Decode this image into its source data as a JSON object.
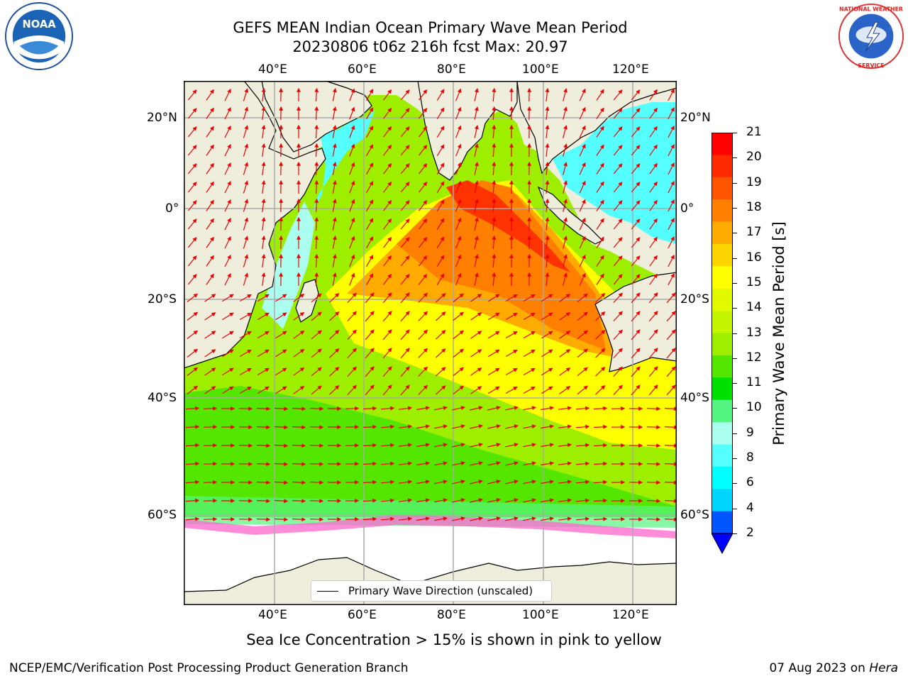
{
  "header": {
    "title_line1": "GEFS MEAN Indian Ocean Primary Wave Mean Period",
    "title_line2": "20230806 t06z 216h fcst   Max: 20.97"
  },
  "logos": {
    "left": "noaa-logo",
    "left_text": "NOAA",
    "right": "national-weather-service-logo",
    "right_text": "NATIONAL WEATHER SERVICE"
  },
  "map": {
    "lon_labels": [
      "40°E",
      "60°E",
      "80°E",
      "100°E",
      "120°E"
    ],
    "lat_labels": [
      "20°N",
      "0°",
      "20°S",
      "40°S",
      "60°S"
    ],
    "legend_label": "Primary Wave Direction (unscaled)"
  },
  "colorbar": {
    "label": "Primary Wave Mean Period [s]",
    "ticks": [
      "21",
      "20",
      "19",
      "18",
      "17",
      "16",
      "15",
      "14",
      "13",
      "12",
      "11",
      "10",
      "9",
      "8",
      "6",
      "4",
      "2"
    ],
    "colors": [
      "#fe0000",
      "#ff2a00",
      "#ff5500",
      "#ff8000",
      "#ffab00",
      "#ffd500",
      "#ffff00",
      "#e2fa00",
      "#c6f500",
      "#9eee00",
      "#55e600",
      "#00e000",
      "#55f582",
      "#aaffee",
      "#55ffff",
      "#00ffff",
      "#00d5ff",
      "#0055ff",
      "#0000ff"
    ]
  },
  "captions": {
    "sea_ice": "Sea Ice Concentration > 15% is shown in pink to yellow",
    "footer_left": "NCEP/EMC/Verification Post Processing Product Generation Branch",
    "footer_right_date": "07 Aug 2023 on",
    "footer_right_host": "Hera"
  }
}
